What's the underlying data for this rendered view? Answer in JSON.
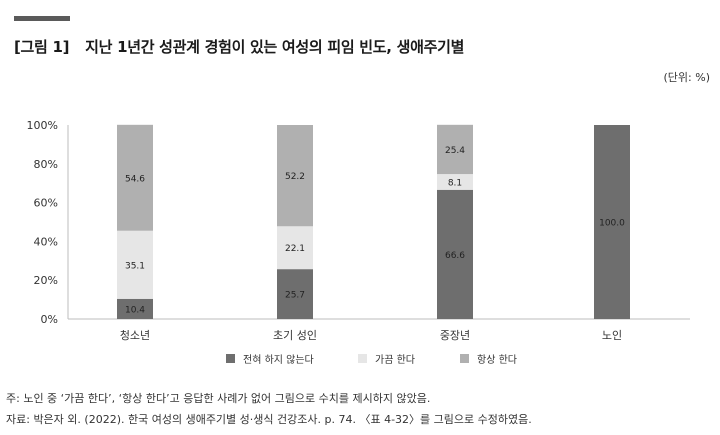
{
  "title": {
    "number": "[그림 1]",
    "text": "지난 1년간 성관계 경험이 있는 여성의 피임 빈도, 생애주기별"
  },
  "unit": "(단위: %)",
  "colors": {
    "never": "#6e6e6e",
    "sometimes": "#e6e6e6",
    "always": "#b0b0b0",
    "axis": "#bdbdbd",
    "tick_text": "#333333"
  },
  "chart_data": {
    "type": "bar",
    "stacked": true,
    "categories": [
      "청소년",
      "초기 성인",
      "중장년",
      "노인"
    ],
    "series": [
      {
        "key": "never",
        "name": "전혀 하지 않는다",
        "values": [
          10.4,
          25.7,
          66.6,
          100.0
        ],
        "labels": [
          "10.4",
          "25.7",
          "66.6",
          "100.0"
        ]
      },
      {
        "key": "sometimes",
        "name": "가끔 한다",
        "values": [
          35.1,
          22.1,
          8.1,
          null
        ],
        "labels": [
          "35.1",
          "22.1",
          "8.1",
          ""
        ]
      },
      {
        "key": "always",
        "name": "항상 한다",
        "values": [
          54.6,
          52.2,
          25.4,
          null
        ],
        "labels": [
          "54.6",
          "52.2",
          "25.4",
          ""
        ]
      }
    ],
    "y_ticks": [
      "0%",
      "20%",
      "40%",
      "60%",
      "80%",
      "100%"
    ],
    "ylim": [
      0,
      100
    ],
    "legend_position": "bottom"
  },
  "notes": {
    "line1": "주: 노인 중 ‘가끔 한다’, ‘항상 한다’고 응답한 사례가 없어 그림으로 수치를 제시하지 않았음.",
    "line2": "자료: 박은자 외. (2022). 한국 여성의 생애주기별 성·생식 건강조사. p. 74. 〈표 4-32〉를 그림으로 수정하였음."
  }
}
